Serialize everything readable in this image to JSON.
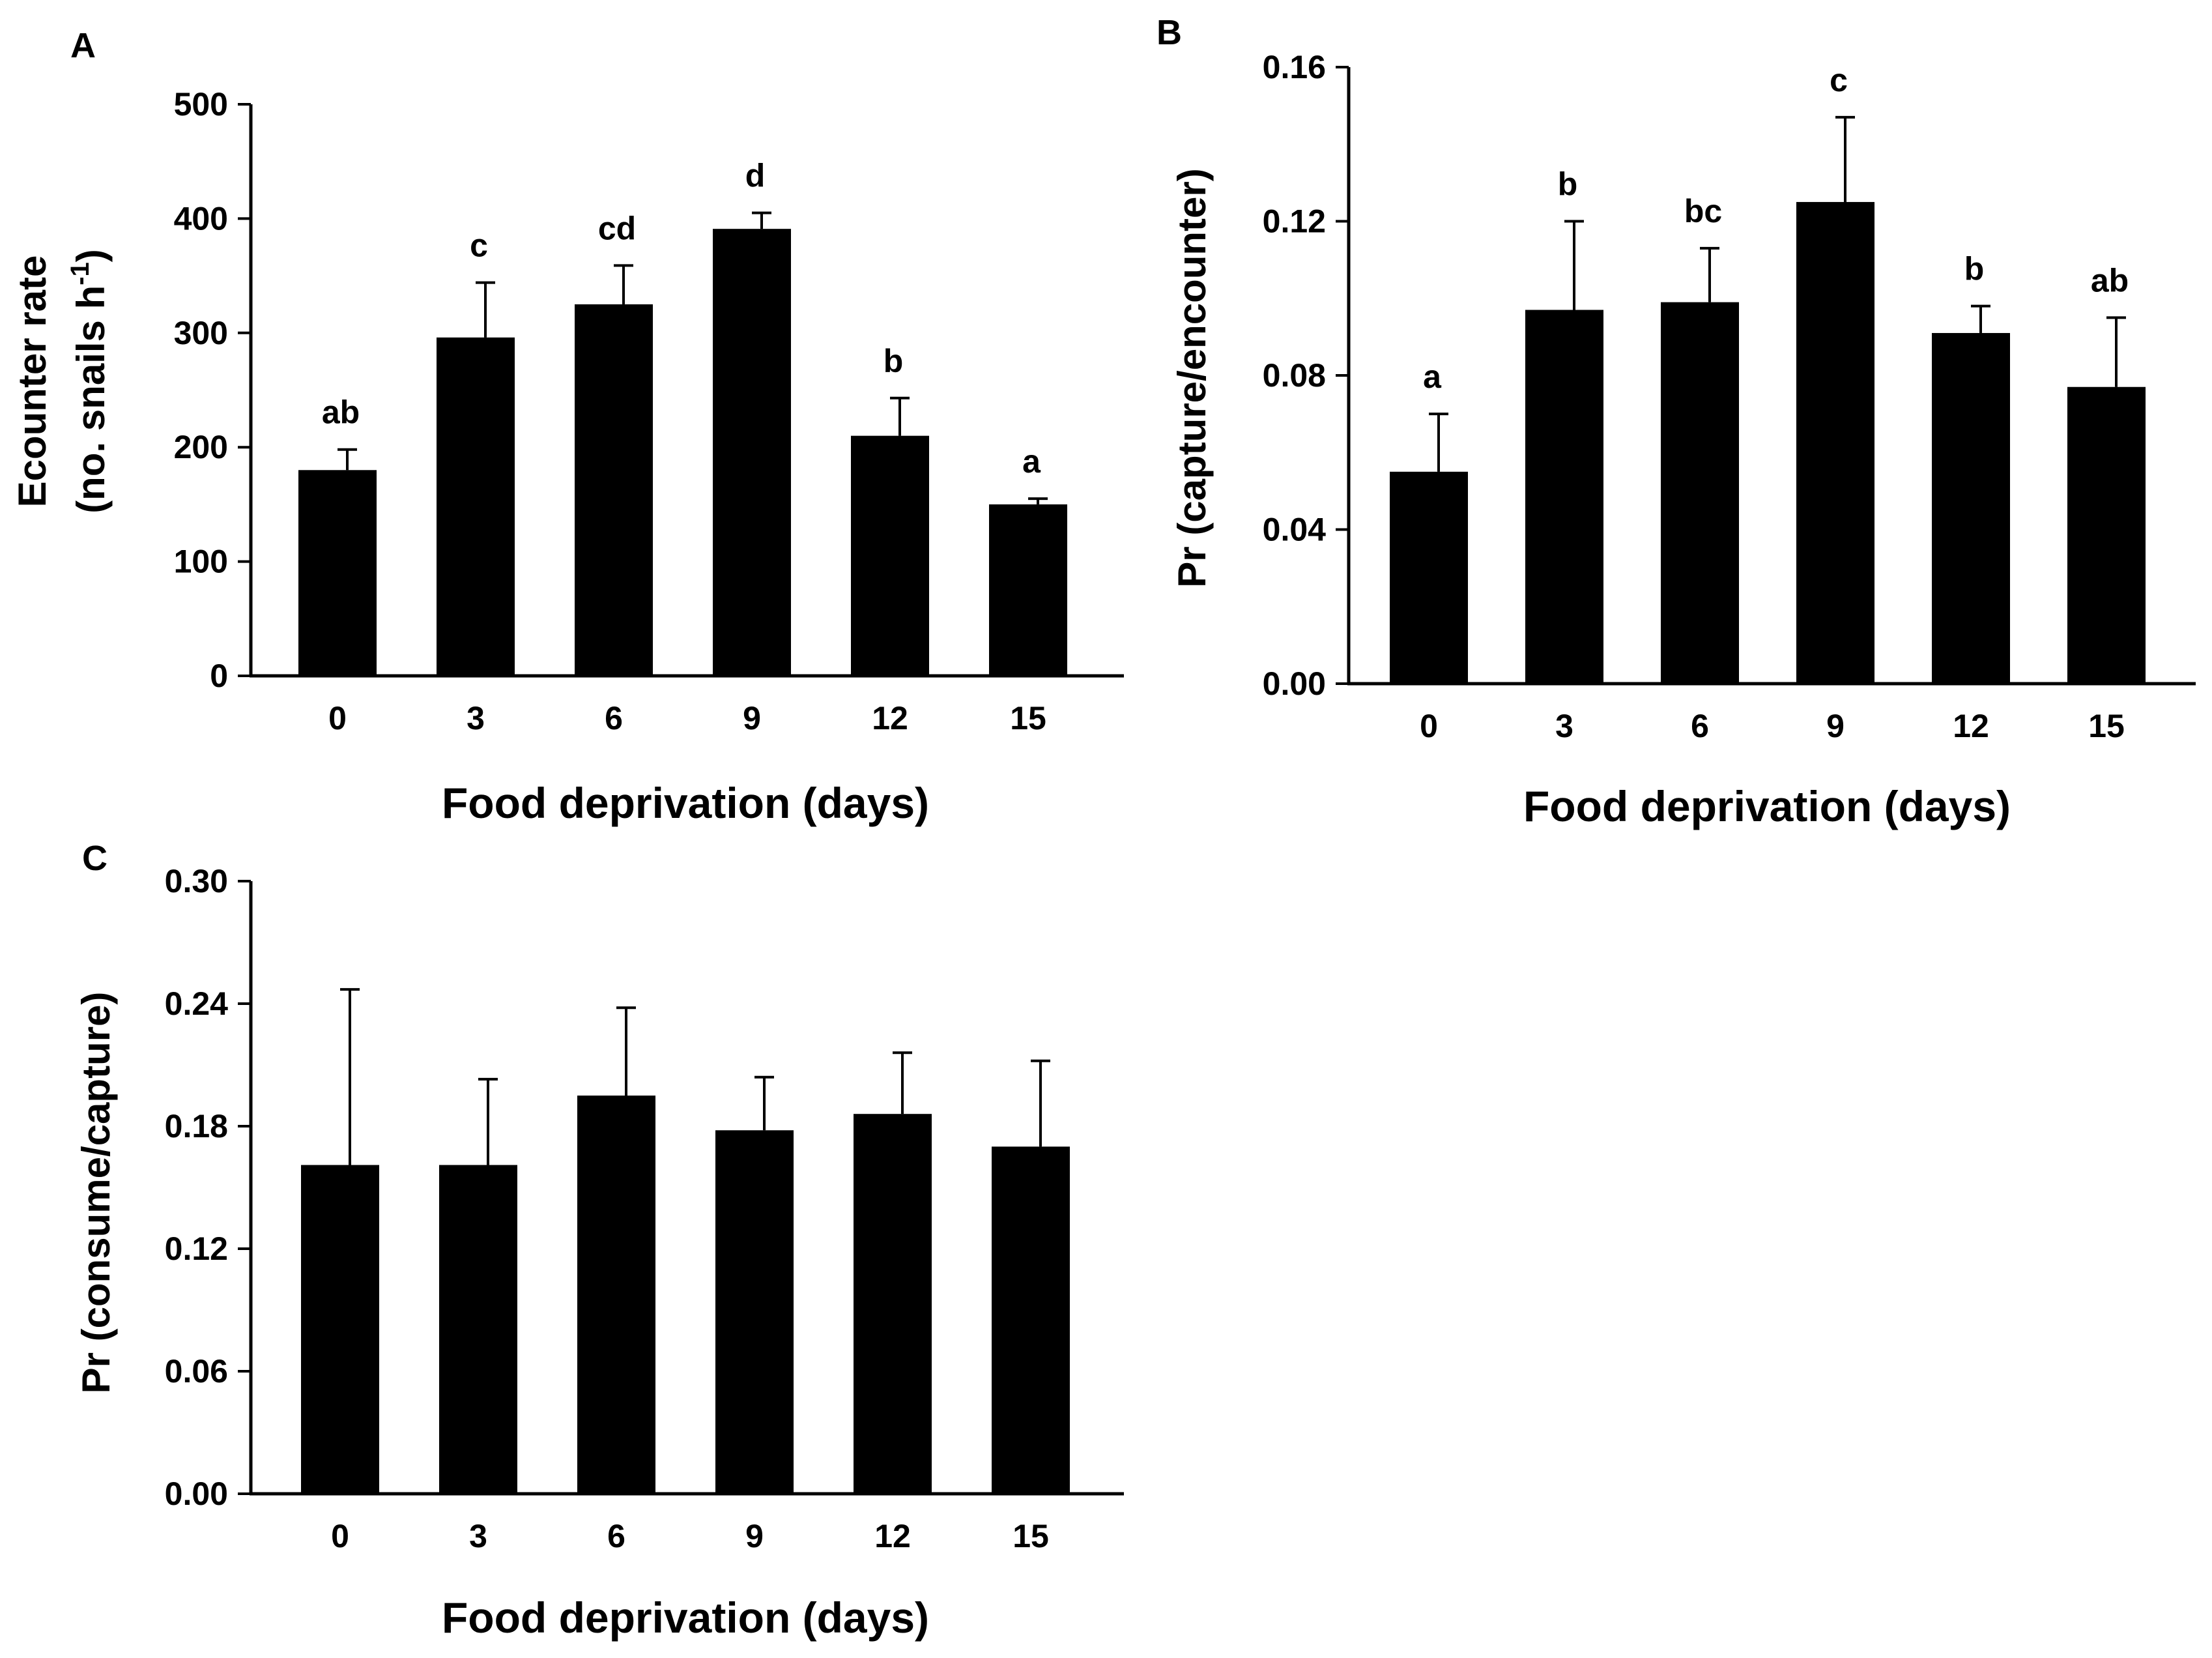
{
  "chart_data": [
    {
      "type": "bar",
      "panel": "A",
      "categories": [
        "0",
        "3",
        "6",
        "9",
        "12",
        "15"
      ],
      "values": [
        180,
        296,
        325,
        391,
        210,
        150
      ],
      "errors": [
        18,
        48,
        34,
        14,
        33,
        5
      ],
      "significance": [
        "ab",
        "c",
        "cd",
        "d",
        "b",
        "a"
      ],
      "xlabel": "Food deprivation (days)",
      "ylabel_line1": "Ecounter rate",
      "ylabel_line2_base": "(no. snails h",
      "ylabel_line2_sup": "-1",
      "ylabel_line2_end": ")",
      "ylim": [
        0,
        500
      ],
      "yticks": [
        0,
        100,
        200,
        300,
        400,
        500
      ],
      "ytick_labels": [
        "0",
        "100",
        "200",
        "300",
        "400",
        "500"
      ]
    },
    {
      "type": "bar",
      "panel": "B",
      "categories": [
        "0",
        "3",
        "6",
        "9",
        "12",
        "15"
      ],
      "values": [
        0.055,
        0.097,
        0.099,
        0.125,
        0.091,
        0.077
      ],
      "errors": [
        0.015,
        0.023,
        0.014,
        0.022,
        0.007,
        0.018
      ],
      "significance": [
        "a",
        "b",
        "bc",
        "c",
        "b",
        "ab"
      ],
      "xlabel": "Food deprivation (days)",
      "ylabel": "Pr (capture/encounter)",
      "ylim": [
        0,
        0.16
      ],
      "yticks": [
        0,
        0.04,
        0.08,
        0.12,
        0.16
      ],
      "ytick_labels": [
        "0.00",
        "0.04",
        "0.08",
        "0.12",
        "0.16"
      ]
    },
    {
      "type": "bar",
      "panel": "C",
      "categories": [
        "0",
        "3",
        "6",
        "9",
        "12",
        "15"
      ],
      "values": [
        0.161,
        0.161,
        0.195,
        0.178,
        0.186,
        0.17
      ],
      "errors": [
        0.086,
        0.042,
        0.043,
        0.026,
        0.03,
        0.042
      ],
      "significance": [],
      "xlabel": "Food deprivation (days)",
      "ylabel": "Pr (consume/capture)",
      "ylim": [
        0,
        0.3
      ],
      "yticks": [
        0,
        0.06,
        0.12,
        0.18,
        0.24,
        0.3
      ],
      "ytick_labels": [
        "0.00",
        "0.06",
        "0.12",
        "0.18",
        "0.24",
        "0.30"
      ]
    }
  ]
}
